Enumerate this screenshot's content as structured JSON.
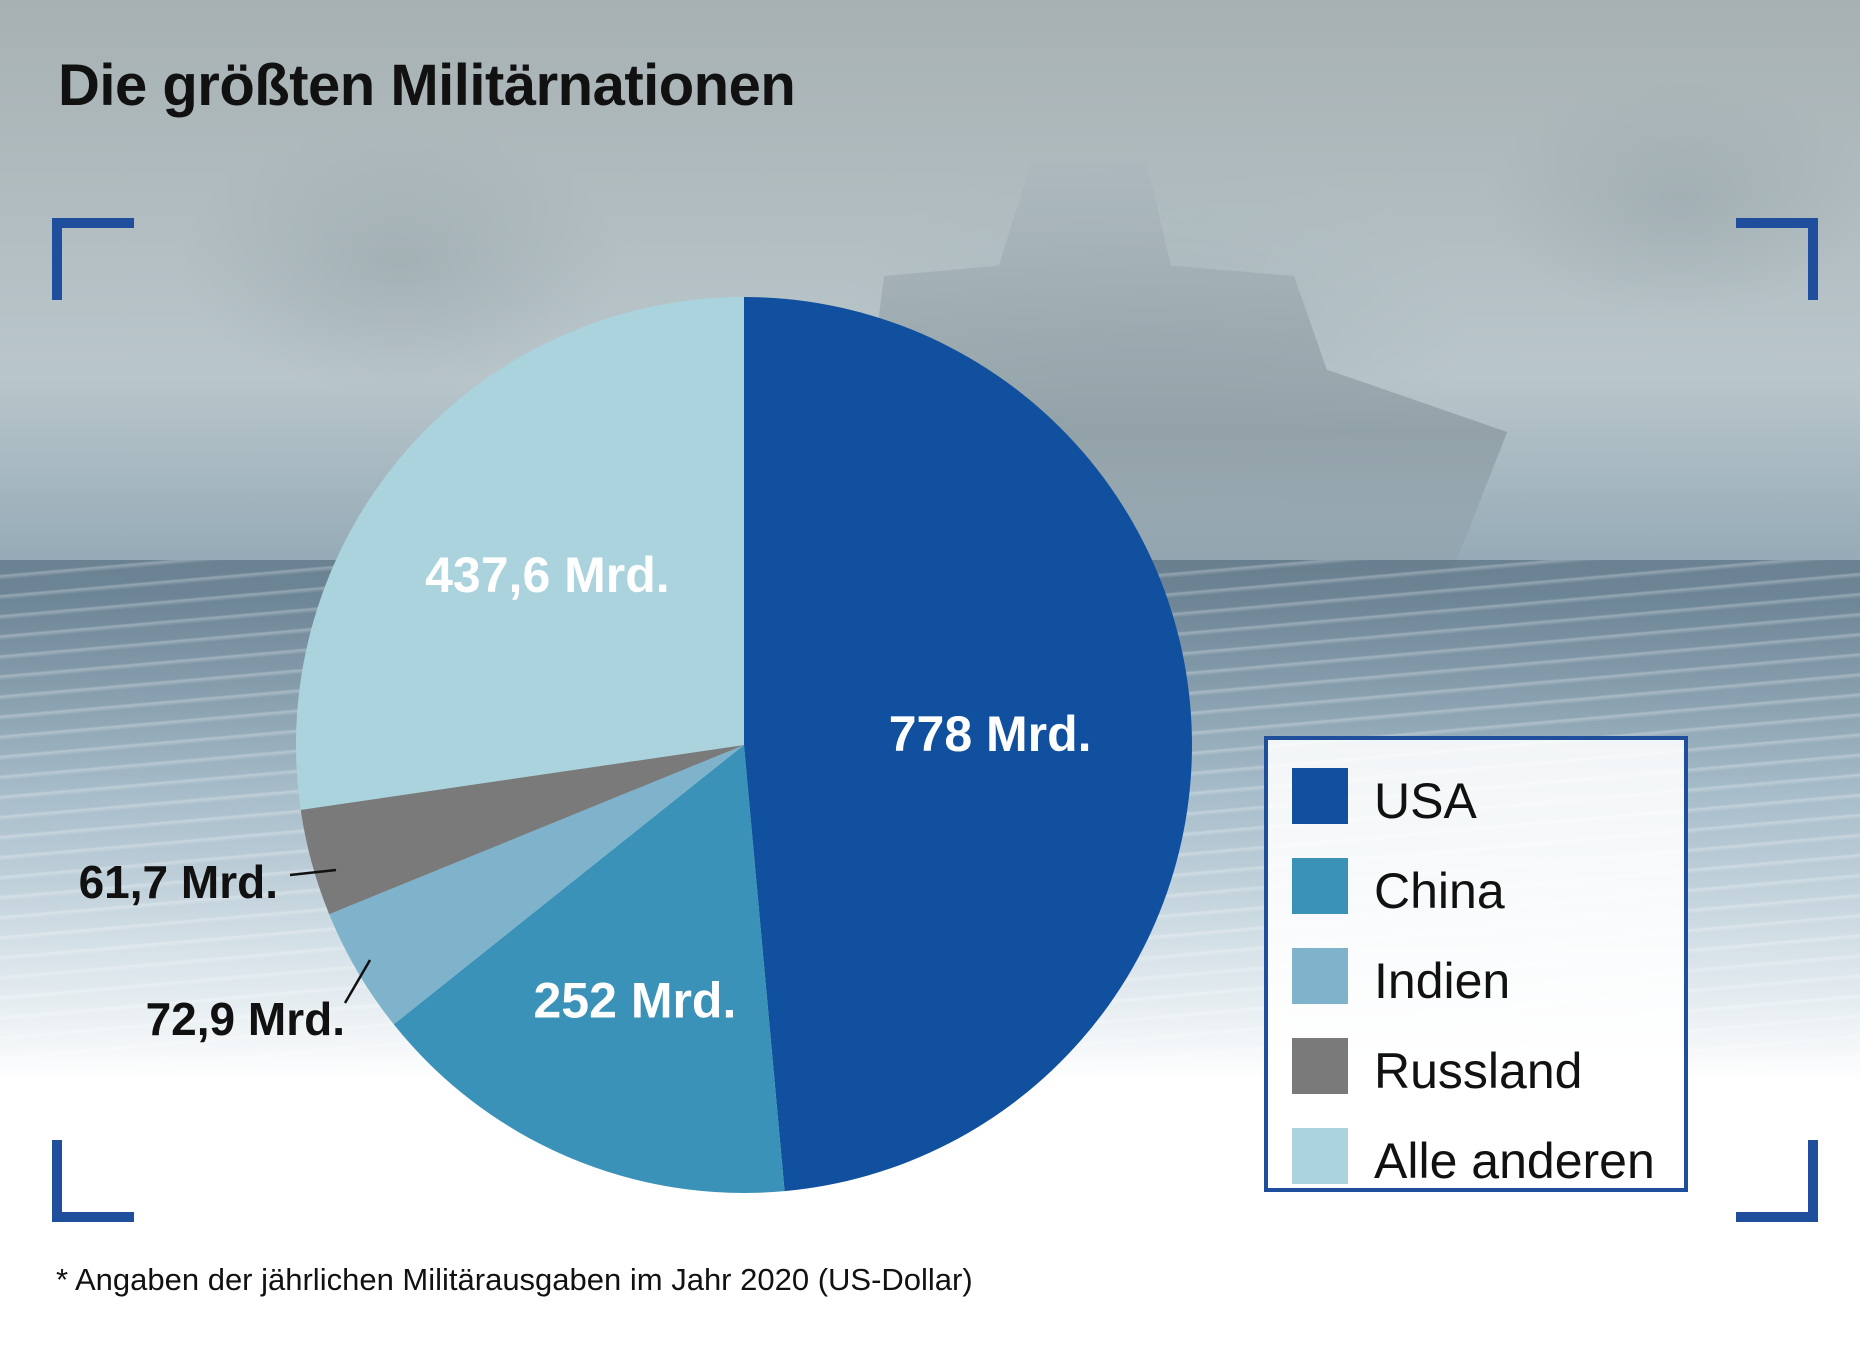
{
  "title": "Die größten Militärnationen",
  "footnote": "* Angaben der jährlichen Militärausgaben im Jahr 2020 (US-Dollar)",
  "chart_data": {
    "type": "pie",
    "title": "Die größten Militärnationen",
    "unit": "Mrd.",
    "slices": [
      {
        "name": "USA",
        "value": 778,
        "label": "778 Mrd.",
        "color": "#11509e",
        "label_position": "inside"
      },
      {
        "name": "China",
        "value": 252,
        "label": "252 Mrd.",
        "color": "#3b92b9",
        "label_position": "inside"
      },
      {
        "name": "Indien",
        "value": 72.9,
        "label": "72,9 Mrd.",
        "color": "#7eb3cb",
        "label_position": "outside"
      },
      {
        "name": "Russland",
        "value": 61.7,
        "label": "61,7 Mrd.",
        "color": "#7a7a7a",
        "label_position": "outside"
      },
      {
        "name": "Alle anderen",
        "value": 437.6,
        "label": "437,6 Mrd.",
        "color": "#aad3dd",
        "label_position": "inside"
      }
    ],
    "start_angle_deg": 0,
    "direction": "clockwise",
    "legend_position": "right"
  },
  "legend": {
    "items": [
      "USA",
      "China",
      "Indien",
      "Russland",
      "Alle anderen"
    ]
  }
}
